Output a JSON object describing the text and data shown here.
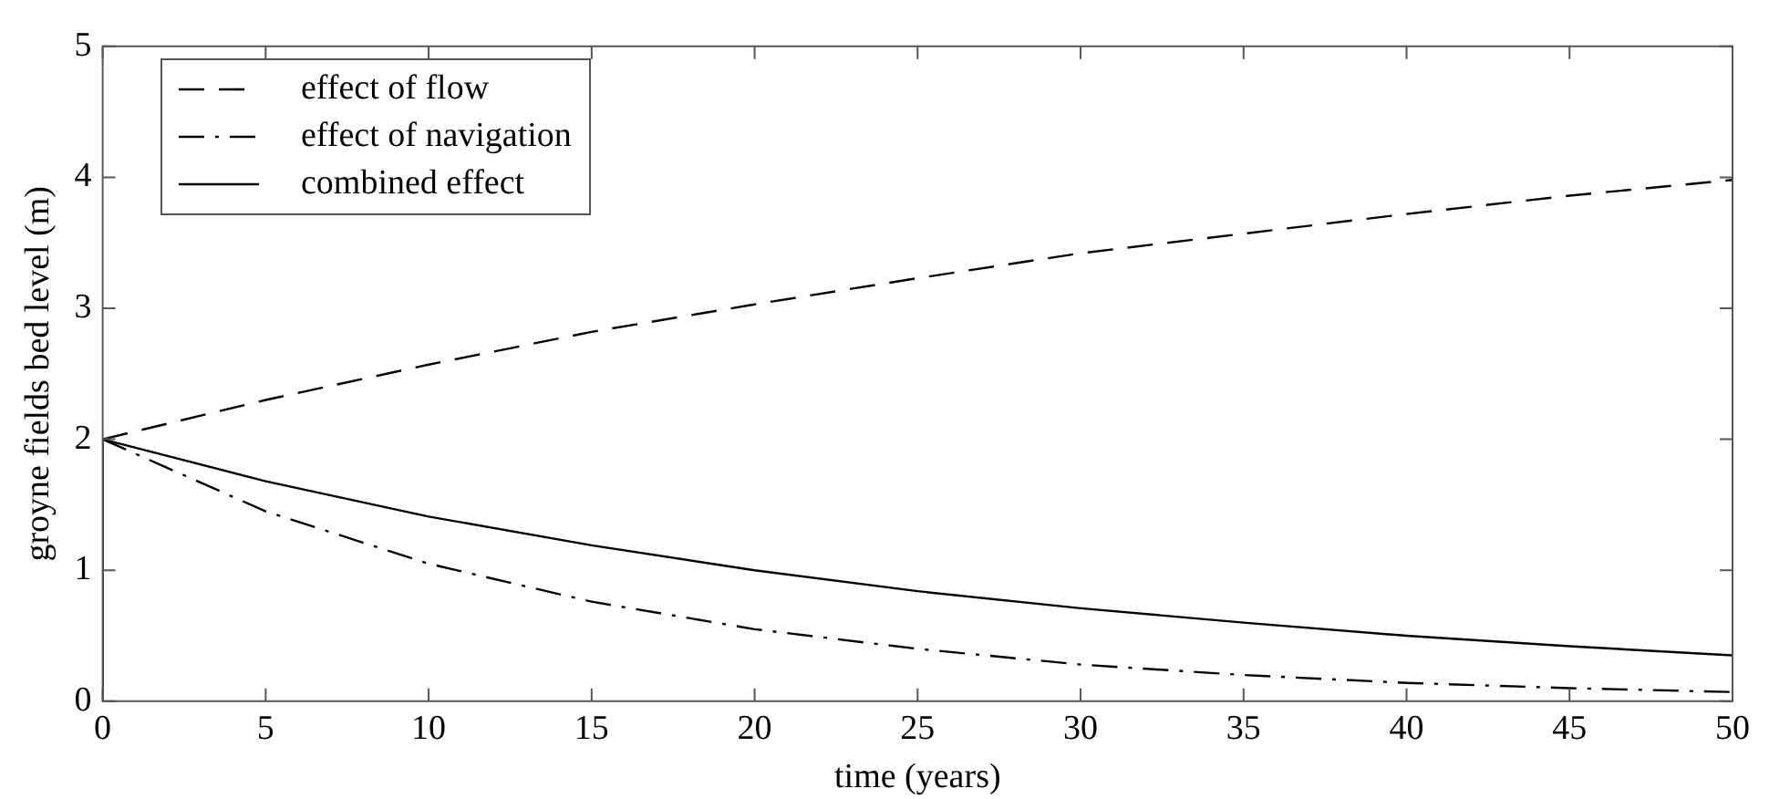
{
  "chart_data": {
    "type": "line",
    "xlabel": "time (years)",
    "ylabel": "groyne fields bed level (m)",
    "xlim": [
      0,
      50
    ],
    "ylim": [
      0,
      5
    ],
    "xticks": [
      0,
      5,
      10,
      15,
      20,
      25,
      30,
      35,
      40,
      45,
      50
    ],
    "yticks": [
      0,
      1,
      2,
      3,
      4,
      5
    ],
    "grid": false,
    "legend": "top left",
    "marker": "none",
    "series": [
      {
        "name": "effect of flow",
        "color": "#000000",
        "line_style": "dashed",
        "x": [
          0,
          5,
          10,
          15,
          20,
          25,
          30,
          35,
          40,
          45,
          50
        ],
        "values": [
          2,
          2.3,
          2.57,
          2.82,
          3.03,
          3.23,
          3.42,
          3.57,
          3.72,
          3.86,
          3.98
        ]
      },
      {
        "name": "effect of navigation",
        "color": "#000000",
        "line_style": "dashdot",
        "x": [
          0,
          5,
          10,
          15,
          20,
          25,
          30,
          35,
          40,
          45,
          50
        ],
        "values": [
          2,
          1.45,
          1.05,
          0.76,
          0.55,
          0.4,
          0.28,
          0.2,
          0.14,
          0.1,
          0.07
        ]
      },
      {
        "name": "combined effect",
        "color": "#000000",
        "line_style": "solid",
        "x": [
          0,
          0,
          5,
          10,
          15,
          20,
          25,
          30,
          35,
          40,
          45,
          50
        ],
        "values": [
          0,
          2,
          1.68,
          1.41,
          1.19,
          1,
          0.84,
          0.71,
          0.6,
          0.5,
          0.42,
          0.35
        ]
      }
    ]
  }
}
